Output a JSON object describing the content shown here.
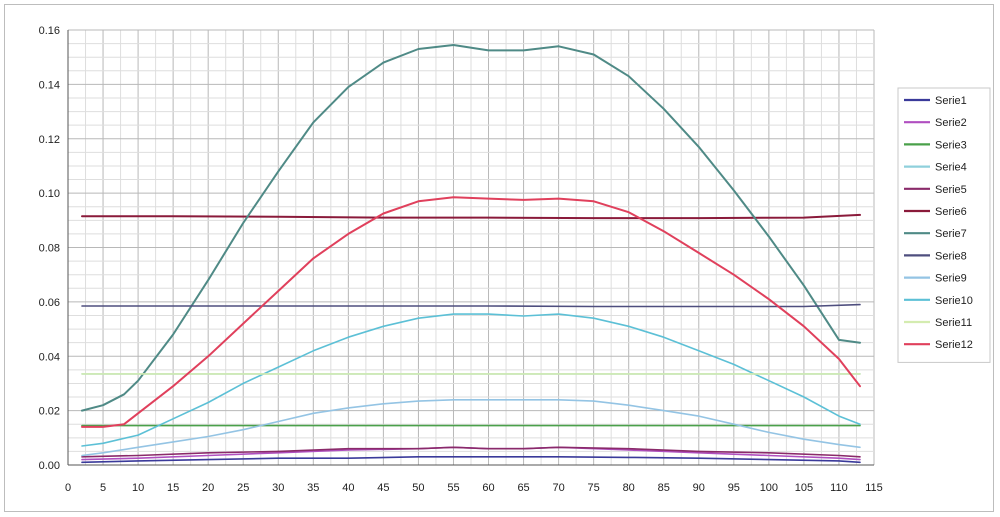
{
  "chart_data": {
    "type": "line",
    "title": "",
    "xlabel": "",
    "ylabel": "",
    "xlim": [
      0,
      115
    ],
    "ylim": [
      0,
      0.16
    ],
    "x_ticks": [
      "0",
      "5",
      "10",
      "15",
      "20",
      "25",
      "30",
      "35",
      "40",
      "45",
      "50",
      "55",
      "60",
      "65",
      "70",
      "75",
      "80",
      "85",
      "90",
      "95",
      "100",
      "105",
      "110",
      "115"
    ],
    "y_ticks": [
      "0.00",
      "0.02",
      "0.04",
      "0.06",
      "0.08",
      "0.10",
      "0.12",
      "0.14",
      "0.16"
    ],
    "grid": true,
    "legend_position": "right",
    "series": [
      {
        "name": "Serie1",
        "color": "#3a3a9a",
        "x": [
          2,
          10,
          20,
          30,
          40,
          50,
          55,
          60,
          65,
          70,
          80,
          90,
          100,
          110,
          113
        ],
        "y": [
          0.001,
          0.0015,
          0.002,
          0.0025,
          0.0025,
          0.003,
          0.003,
          0.003,
          0.003,
          0.003,
          0.0028,
          0.0025,
          0.002,
          0.0015,
          0.001
        ]
      },
      {
        "name": "Serie2",
        "color": "#b04fc0",
        "x": [
          2,
          10,
          20,
          30,
          40,
          50,
          55,
          60,
          65,
          70,
          80,
          90,
          100,
          110,
          113
        ],
        "y": [
          0.002,
          0.0025,
          0.0035,
          0.0045,
          0.0055,
          0.006,
          0.0065,
          0.006,
          0.006,
          0.0065,
          0.0055,
          0.0045,
          0.0035,
          0.0025,
          0.002
        ]
      },
      {
        "name": "Serie3",
        "color": "#4aa04a",
        "x": [
          2,
          15,
          30,
          45,
          60,
          75,
          90,
          105,
          113
        ],
        "y": [
          0.0145,
          0.0145,
          0.0145,
          0.0145,
          0.0145,
          0.0145,
          0.0145,
          0.0145,
          0.0145
        ]
      },
      {
        "name": "Serie4",
        "color": "#8fd0dc",
        "x": [
          2,
          15,
          30,
          45,
          60,
          75,
          90,
          105,
          113
        ],
        "y": [
          0.0335,
          0.0335,
          0.0335,
          0.0335,
          0.0335,
          0.0335,
          0.0335,
          0.0335,
          0.0335
        ]
      },
      {
        "name": "Serie5",
        "color": "#8a2a6a",
        "x": [
          2,
          10,
          20,
          30,
          40,
          50,
          55,
          60,
          65,
          70,
          80,
          90,
          100,
          110,
          113
        ],
        "y": [
          0.003,
          0.0035,
          0.0045,
          0.005,
          0.006,
          0.006,
          0.0065,
          0.006,
          0.006,
          0.0065,
          0.006,
          0.005,
          0.0045,
          0.0035,
          0.003
        ]
      },
      {
        "name": "Serie6",
        "color": "#8a1a3a",
        "x": [
          2,
          15,
          30,
          45,
          60,
          75,
          90,
          105,
          113
        ],
        "y": [
          0.0915,
          0.0915,
          0.0913,
          0.091,
          0.091,
          0.0908,
          0.0908,
          0.091,
          0.092
        ]
      },
      {
        "name": "Serie7",
        "color": "#4f8a86",
        "x": [
          2,
          5,
          8,
          10,
          15,
          20,
          25,
          30,
          35,
          40,
          45,
          50,
          55,
          60,
          65,
          70,
          75,
          80,
          85,
          90,
          95,
          100,
          105,
          110,
          113
        ],
        "y": [
          0.02,
          0.022,
          0.026,
          0.031,
          0.048,
          0.068,
          0.089,
          0.108,
          0.126,
          0.139,
          0.148,
          0.153,
          0.1545,
          0.1525,
          0.1525,
          0.154,
          0.151,
          0.143,
          0.131,
          0.117,
          0.101,
          0.084,
          0.066,
          0.046,
          0.045
        ]
      },
      {
        "name": "Serie8",
        "color": "#4e4e7e",
        "x": [
          2,
          15,
          30,
          45,
          60,
          75,
          90,
          105,
          113
        ],
        "y": [
          0.0585,
          0.0585,
          0.0585,
          0.0585,
          0.0585,
          0.0583,
          0.0583,
          0.0583,
          0.059
        ]
      },
      {
        "name": "Serie9",
        "color": "#94c4e4",
        "x": [
          2,
          5,
          10,
          15,
          20,
          25,
          30,
          35,
          40,
          45,
          50,
          55,
          60,
          65,
          70,
          75,
          80,
          85,
          90,
          95,
          100,
          105,
          110,
          113
        ],
        "y": [
          0.0035,
          0.0045,
          0.0065,
          0.0085,
          0.0105,
          0.013,
          0.016,
          0.019,
          0.021,
          0.0225,
          0.0235,
          0.024,
          0.024,
          0.024,
          0.024,
          0.0235,
          0.022,
          0.02,
          0.018,
          0.015,
          0.012,
          0.0095,
          0.0075,
          0.0065
        ]
      },
      {
        "name": "Serie10",
        "color": "#5cc0d6",
        "x": [
          2,
          5,
          10,
          15,
          20,
          25,
          30,
          35,
          40,
          45,
          50,
          55,
          60,
          65,
          70,
          75,
          80,
          85,
          90,
          95,
          100,
          105,
          110,
          113
        ],
        "y": [
          0.007,
          0.008,
          0.011,
          0.017,
          0.023,
          0.03,
          0.036,
          0.042,
          0.047,
          0.051,
          0.054,
          0.0555,
          0.0555,
          0.0548,
          0.0555,
          0.054,
          0.051,
          0.047,
          0.042,
          0.037,
          0.031,
          0.025,
          0.018,
          0.015
        ]
      },
      {
        "name": "Serie11",
        "color": "#d4ecb0",
        "x": [
          2,
          15,
          30,
          45,
          60,
          75,
          90,
          105,
          113
        ],
        "y": [
          0.0335,
          0.0335,
          0.0335,
          0.0335,
          0.0335,
          0.0335,
          0.0335,
          0.0335,
          0.0335
        ]
      },
      {
        "name": "Serie12",
        "color": "#e0405c",
        "x": [
          2,
          5,
          8,
          10,
          15,
          20,
          25,
          30,
          35,
          40,
          45,
          50,
          55,
          60,
          65,
          70,
          75,
          80,
          85,
          90,
          95,
          100,
          105,
          110,
          113
        ],
        "y": [
          0.014,
          0.014,
          0.015,
          0.019,
          0.029,
          0.04,
          0.052,
          0.064,
          0.076,
          0.085,
          0.0925,
          0.097,
          0.0985,
          0.098,
          0.0975,
          0.098,
          0.097,
          0.093,
          0.086,
          0.078,
          0.07,
          0.061,
          0.051,
          0.039,
          0.029
        ]
      }
    ]
  }
}
